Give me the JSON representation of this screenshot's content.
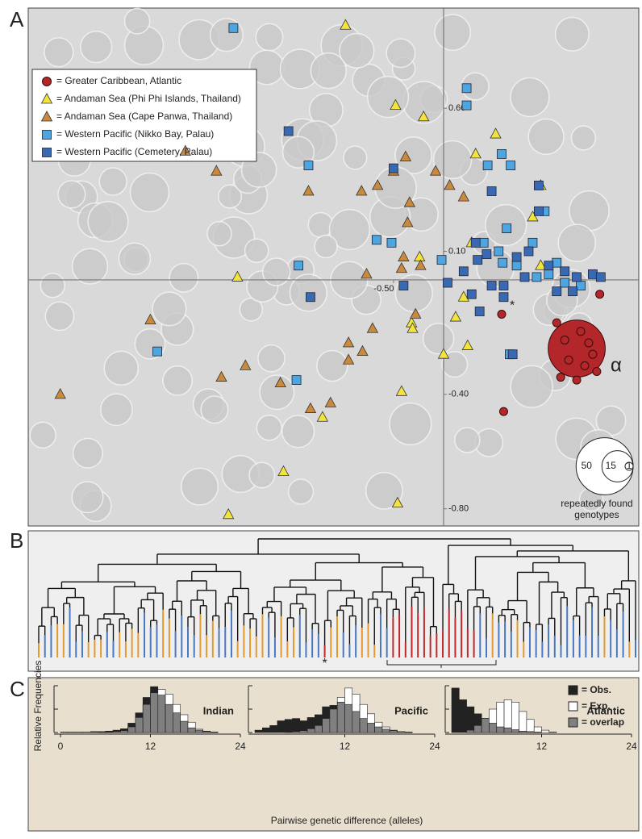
{
  "chart_data": [
    {
      "type": "scatter",
      "panel_label": "A",
      "xlim": [
        -4.15,
        1.95
      ],
      "ylim": [
        -0.86,
        0.95
      ],
      "xticks": [
        {
          "value": -0.5,
          "label": "-0.50"
        }
      ],
      "yticks": [
        {
          "value": 0.6,
          "label": "0.60"
        },
        {
          "value": 0.1,
          "label": "0.10"
        },
        {
          "value": -0.4,
          "label": "-0.40"
        },
        {
          "value": -0.8,
          "label": "-0.80"
        }
      ],
      "series": [
        {
          "name": "= Greater Caribbean, Atlantic",
          "color": "#b3272b",
          "marker": "circle",
          "x": [
            1.56,
            0.6,
            0.58,
            1.33,
            1.13,
            1.21,
            1.37,
            1.45,
            1.25,
            1.41,
            1.53,
            1.17,
            1.33,
            1.49
          ],
          "y": [
            -0.05,
            -0.46,
            -0.12,
            -0.24,
            -0.15,
            -0.21,
            -0.18,
            -0.22,
            -0.28,
            -0.3,
            -0.32,
            -0.34,
            -0.35,
            -0.26
          ],
          "sizes": [
            1,
            1,
            1,
            50,
            1,
            1,
            1,
            1,
            1,
            1,
            1,
            1,
            1,
            1
          ]
        },
        {
          "name": "= Andaman Sea (Phi Phi Islands, Thailand)",
          "color": "#f3e43c",
          "marker": "triangle",
          "x": [
            -0.98,
            -0.48,
            -0.2,
            0.32,
            0.97,
            0.89,
            -0.24,
            -2.06,
            0.97,
            0.2,
            0.12,
            -0.32,
            -0.31,
            0.0,
            0.24,
            -0.42,
            -1.21,
            -1.6,
            -2.15,
            -0.46,
            0.52,
            0.28
          ],
          "y": [
            0.89,
            0.61,
            0.57,
            0.44,
            0.33,
            0.22,
            0.08,
            0.01,
            0.05,
            -0.06,
            -0.13,
            -0.15,
            -0.17,
            -0.26,
            -0.23,
            -0.39,
            -0.48,
            -0.67,
            -0.82,
            -0.78,
            0.51,
            0.13
          ]
        },
        {
          "name": "= Andaman Sea (Cape Panwa, Thailand)",
          "color": "#c98a3e",
          "marker": "triangle",
          "x": [
            -2.58,
            -2.27,
            -1.35,
            -0.82,
            -0.66,
            -0.5,
            -0.38,
            -0.08,
            0.06,
            0.2,
            -0.36,
            -0.34,
            -0.4,
            -0.77,
            -0.71,
            -0.95,
            -0.81,
            -0.95,
            -1.13,
            -1.33,
            -1.63,
            -1.98,
            -2.22,
            -2.93,
            -3.83,
            -0.23,
            -0.28,
            -0.42
          ],
          "y": [
            0.45,
            0.38,
            0.31,
            0.31,
            0.33,
            0.38,
            0.43,
            0.38,
            0.33,
            0.29,
            0.2,
            0.27,
            0.08,
            0.02,
            -0.17,
            -0.22,
            -0.25,
            -0.28,
            -0.43,
            -0.45,
            -0.36,
            -0.3,
            -0.34,
            -0.14,
            -0.4,
            0.05,
            -0.12,
            0.04
          ]
        },
        {
          "name": "= Western Pacific (Nikko Bay, Palau)",
          "color": "#4ea6e0",
          "marker": "square",
          "x": [
            -2.1,
            -1.35,
            -1.45,
            -2.86,
            -1.47,
            -0.67,
            -0.52,
            -0.02,
            0.23,
            0.23,
            0.58,
            0.67,
            0.44,
            0.63,
            0.4,
            0.55,
            0.59,
            0.73,
            0.93,
            1.05,
            1.21,
            1.37,
            1.13,
            0.89,
            1.01,
            0.66
          ],
          "y": [
            0.88,
            0.4,
            0.05,
            -0.25,
            -0.35,
            0.14,
            0.13,
            0.07,
            0.61,
            0.67,
            0.44,
            0.4,
            0.4,
            0.18,
            0.13,
            0.1,
            0.06,
            0.05,
            0.01,
            0.02,
            -0.01,
            -0.02,
            0.06,
            0.13,
            0.24,
            -0.26
          ]
        },
        {
          "name": "= Western Pacific (Cemetery, Palau)",
          "color": "#3a69b4",
          "marker": "square",
          "x": [
            -1.55,
            -0.5,
            0.95,
            0.48,
            0.95,
            0.32,
            0.43,
            0.34,
            0.73,
            0.85,
            1.05,
            1.21,
            1.33,
            1.49,
            1.57,
            1.29,
            1.13,
            0.81,
            0.6,
            0.48,
            0.28,
            0.36,
            0.04,
            -0.4,
            -1.33,
            0.6,
            0.69,
            0.2
          ],
          "y": [
            0.52,
            0.39,
            0.33,
            0.31,
            0.24,
            0.13,
            0.09,
            0.07,
            0.08,
            0.1,
            0.05,
            0.03,
            0.01,
            0.02,
            0.01,
            -0.04,
            -0.04,
            0.01,
            -0.02,
            -0.02,
            -0.05,
            -0.11,
            -0.01,
            -0.02,
            -0.06,
            -0.06,
            -0.26,
            0.03
          ]
        }
      ],
      "annotations": [
        "α",
        "*"
      ],
      "size_legend": {
        "values": [
          50,
          15,
          1
        ],
        "label": "repeatedly found genotypes"
      }
    },
    {
      "type": "dendrogram",
      "panel_label": "B",
      "annotation": "*"
    },
    {
      "type": "histogram",
      "panel_label": "C",
      "name": "Indian",
      "ylabel": "Relative Frequencies",
      "bins": [
        0,
        1,
        2,
        3,
        4,
        5,
        6,
        7,
        8,
        9,
        10,
        11,
        12,
        13,
        14,
        15,
        16,
        17,
        18,
        19,
        20,
        21,
        22,
        23,
        24
      ],
      "xlim": [
        0,
        24
      ],
      "xticks": [
        0,
        12,
        24
      ],
      "ylim": [
        0,
        1
      ],
      "yticks": [
        0,
        0.5,
        1
      ],
      "series": [
        {
          "name": "Obs.",
          "color": "#222222",
          "values": [
            0.01,
            0.01,
            0.01,
            0.01,
            0.02,
            0.02,
            0.03,
            0.05,
            0.08,
            0.2,
            0.42,
            0.75,
            0.98,
            0.8,
            0.6,
            0.42,
            0.24,
            0.1,
            0.05,
            0.02,
            0.01,
            0,
            0,
            0
          ]
        },
        {
          "name": "Exp.",
          "color": "#ffffff",
          "values": [
            0,
            0,
            0,
            0,
            0,
            0.01,
            0.01,
            0.02,
            0.04,
            0.12,
            0.32,
            0.6,
            0.85,
            0.92,
            0.82,
            0.6,
            0.38,
            0.22,
            0.07,
            0.03,
            0.01,
            0,
            0,
            0
          ]
        }
      ]
    },
    {
      "type": "histogram",
      "name": "Pacific",
      "xlabel": "Pairwise genetic difference (alleles)",
      "bins": [
        0,
        1,
        2,
        3,
        4,
        5,
        6,
        7,
        8,
        9,
        10,
        11,
        12,
        13,
        14,
        15,
        16,
        17,
        18,
        19,
        20,
        21,
        22,
        23,
        24
      ],
      "xlim": [
        0,
        24
      ],
      "xticks": [
        12,
        24
      ],
      "ylim": [
        0,
        1
      ],
      "yticks": [
        0,
        0.5,
        1
      ],
      "series": [
        {
          "name": "Obs.",
          "color": "#222222",
          "values": [
            0.05,
            0.1,
            0.15,
            0.25,
            0.28,
            0.3,
            0.25,
            0.32,
            0.38,
            0.55,
            0.58,
            0.65,
            0.6,
            0.45,
            0.3,
            0.2,
            0.12,
            0.07,
            0.04,
            0.02,
            0.01,
            0,
            0,
            0
          ]
        },
        {
          "name": "Exp.",
          "color": "#ffffff",
          "values": [
            0,
            0,
            0,
            0,
            0.01,
            0.02,
            0.04,
            0.08,
            0.15,
            0.3,
            0.5,
            0.75,
            0.95,
            0.82,
            0.6,
            0.4,
            0.22,
            0.12,
            0.05,
            0.02,
            0.01,
            0,
            0,
            0
          ]
        }
      ]
    },
    {
      "type": "histogram",
      "name": "Atlantic",
      "bins": [
        0,
        1,
        2,
        3,
        4,
        5,
        6,
        7,
        8,
        9,
        10,
        11,
        12,
        13,
        14,
        15,
        16,
        17,
        18,
        19,
        20,
        21,
        22,
        23,
        24
      ],
      "xlim": [
        0,
        24
      ],
      "xticks": [
        12,
        24
      ],
      "ylim": [
        0,
        1
      ],
      "yticks": [
        0,
        0.5,
        1
      ],
      "series": [
        {
          "name": "= Obs.",
          "color": "#222222",
          "values": [
            0.95,
            0.7,
            0.55,
            0.4,
            0.3,
            0.2,
            0.12,
            0.1,
            0.06,
            0.03,
            0.02,
            0.01,
            0,
            0,
            0,
            0,
            0,
            0,
            0,
            0,
            0,
            0,
            0,
            0
          ]
        },
        {
          "name": "= Exp.",
          "color": "#ffffff",
          "values": [
            0,
            0,
            0.05,
            0.15,
            0.3,
            0.5,
            0.65,
            0.7,
            0.65,
            0.45,
            0.28,
            0.12,
            0.05,
            0.01,
            0,
            0,
            0,
            0,
            0,
            0,
            0,
            0,
            0,
            0
          ]
        }
      ],
      "overlap": {
        "name": "= overlap",
        "color": "#808080"
      }
    }
  ]
}
